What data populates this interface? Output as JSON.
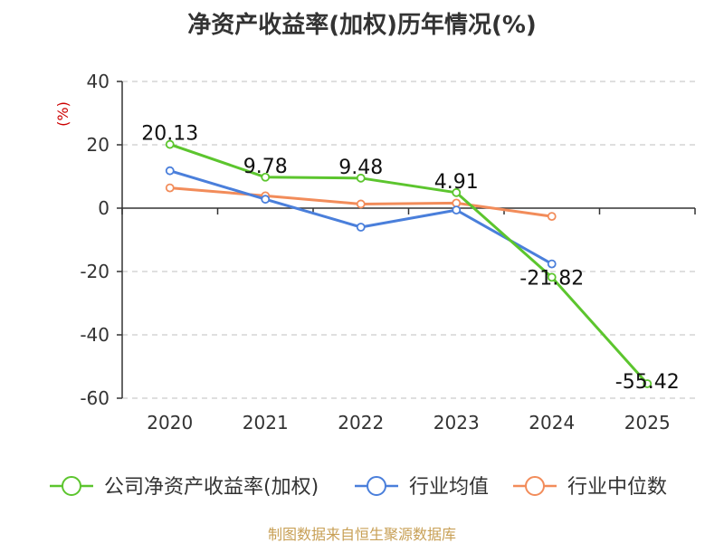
{
  "chart_data": {
    "type": "line",
    "title": "净资产收益率(加权)历年情况(%)",
    "ylabel": "(%)",
    "xlabel": "",
    "categories": [
      "2020",
      "2021",
      "2022",
      "2023",
      "2024",
      "2025"
    ],
    "ylim": [
      -60,
      40
    ],
    "yticks": [
      40,
      20,
      0,
      -20,
      -40,
      -60
    ],
    "grid": true,
    "legend_position": "bottom",
    "series": [
      {
        "name": "公司净资产收益率(加权)",
        "color": "#5cc52e",
        "values": [
          20.13,
          9.78,
          9.48,
          4.91,
          -21.82,
          -55.42
        ],
        "labels": [
          "20.13",
          "9.78",
          "9.48",
          "4.91",
          "-21.82",
          "-55.42"
        ]
      },
      {
        "name": "行业均值",
        "color": "#4a7fdb",
        "values": [
          11.8,
          2.8,
          -6.0,
          -0.6,
          -17.6,
          null
        ]
      },
      {
        "name": "行业中位数",
        "color": "#f28c5a",
        "values": [
          6.4,
          3.9,
          1.3,
          1.6,
          -2.6,
          null
        ]
      }
    ]
  },
  "footer": {
    "source": "制图数据来自恒生聚源数据库"
  },
  "colors": {
    "axis": "#333333",
    "grid": "#cccccc",
    "ylabel": "#cc0000",
    "footer": "#c8a056",
    "title": "#333333"
  }
}
